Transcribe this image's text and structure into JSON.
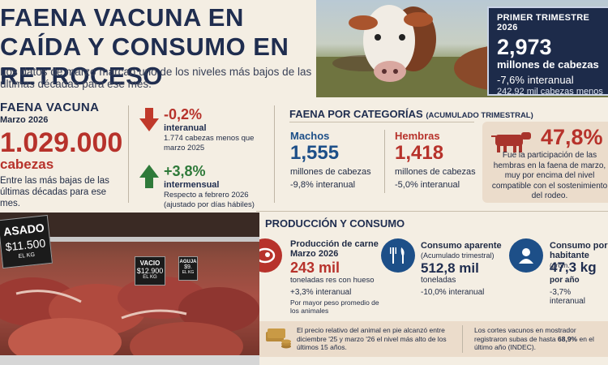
{
  "header": {
    "headline": "Faena vacuna en caída y consumo en retroceso",
    "subtitle": "Los datos de marzo marcan uno de los niveles más bajos de las últimas décadas para ese mes."
  },
  "quarter_box": {
    "title": "PRIMER TRIMESTRE 2026",
    "value": "2,973",
    "unit": "millones de cabezas",
    "pct": "-7,6% interanual",
    "diff": "242,92 mil cabezas menos"
  },
  "faena": {
    "title": "FAENA VACUNA",
    "period": "Marzo 2026",
    "value": "1.029.000",
    "unit": "cabezas",
    "desc": "Entre las más bajas de las últimas décadas para ese mes."
  },
  "changes": {
    "interanual": {
      "value": "-0,2%",
      "label": "interanual",
      "note": "1.774 cabezas menos que marzo 2025"
    },
    "intermensual": {
      "value": "+3,8%",
      "label": "intermensual",
      "note": "Respecto a febrero 2026 (ajustado por días hábiles)"
    }
  },
  "categories": {
    "title": "FAENA POR CATEGORÍAS",
    "title_sub": "(ACUMULADO TRIMESTRAL)",
    "machos": {
      "label": "Machos",
      "value": "1,555",
      "unit": "millones de cabezas",
      "pct": "-9,8% interanual"
    },
    "hembras": {
      "label": "Hembras",
      "value": "1,418",
      "unit": "millones de cabezas",
      "pct": "-5,0% interanual"
    },
    "participation": {
      "value": "47,8%",
      "desc": "Fue la participación de las hembras en la faena de marzo, muy por encima del nivel compatible con el sostenimiento del rodeo."
    }
  },
  "production": {
    "title": "PRODUCCIÓN Y CONSUMO",
    "carne": {
      "title": "Producción de carne",
      "period": "Marzo 2026",
      "value": "243 mil",
      "unit": "toneladas res con hueso",
      "pct": "+3,3% interanual",
      "note": "Por mayor peso promedio de los animales"
    },
    "consumo": {
      "title": "Consumo aparente",
      "sub": "(Acumulado trimestral)",
      "value": "512,8 mil",
      "unit": "toneladas",
      "pct": "-10,0% interanual"
    },
    "habitante": {
      "title": "Consumo por habitante",
      "title_sub": "(prom.",
      "value": "47,3 kg",
      "unit": "por año",
      "pct": "-3,7% interanual"
    }
  },
  "bottom": {
    "text1": "El precio relativo del animal en pie alcanzó entre diciembre '25 y marzo '26 el nivel más alto de los últimos 15 años.",
    "text2_a": "Los cortes vacunos en mostrador registraron subas de hasta ",
    "text2_b": "68,9%",
    "text2_c": " en el último año (INDEC)."
  },
  "price_cards": {
    "asado": {
      "name": "ASADO",
      "price": "$11.500",
      "unit": "EL KG"
    },
    "vacio": {
      "name": "VACIO",
      "price": "$12.900",
      "unit": "EL KG"
    },
    "aguja": {
      "name": "AGUJA",
      "price": "$9.",
      "unit": "EL KG"
    }
  },
  "colors": {
    "navy": "#1f2d4f",
    "red": "#b7322b",
    "green": "#2f7a3a",
    "blue": "#1d4f88",
    "beige": "#ebdccb"
  }
}
